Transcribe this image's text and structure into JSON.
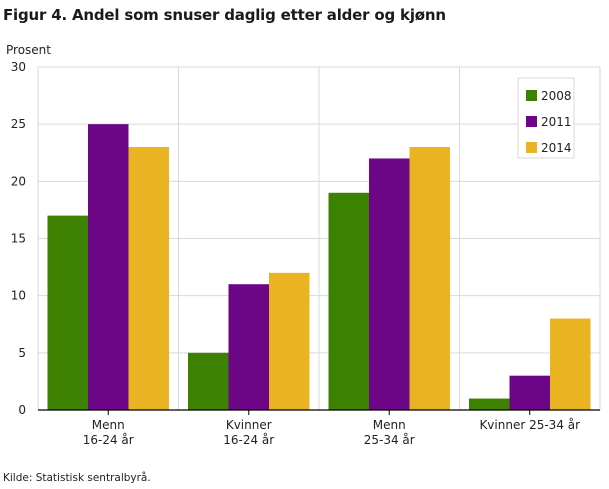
{
  "title": "Figur 4. Andel som snuser daglig etter alder og kjønn",
  "source": "Kilde: Statistisk sentralbyrå.",
  "chart_data": {
    "type": "bar",
    "title": "Figur 4. Andel som snuser daglig etter alder og kjønn",
    "ylabel": "Prosent",
    "xlabel": "",
    "ylim": [
      0,
      30
    ],
    "yticks": [
      0,
      5,
      10,
      15,
      20,
      25,
      30
    ],
    "categories": [
      [
        "Menn",
        "16-24 år"
      ],
      [
        "Kvinner",
        "16-24 år"
      ],
      [
        "Menn",
        "25-34 år"
      ],
      [
        "Kvinner 25-34 år"
      ]
    ],
    "series": [
      {
        "name": "2008",
        "color": "#3d8100",
        "values": [
          17,
          5,
          19,
          1
        ]
      },
      {
        "name": "2011",
        "color": "#6c0586",
        "values": [
          25,
          11,
          22,
          3
        ]
      },
      {
        "name": "2014",
        "color": "#eab321",
        "values": [
          23,
          12,
          23,
          8
        ]
      }
    ],
    "grid": true,
    "legend": "top-right"
  }
}
